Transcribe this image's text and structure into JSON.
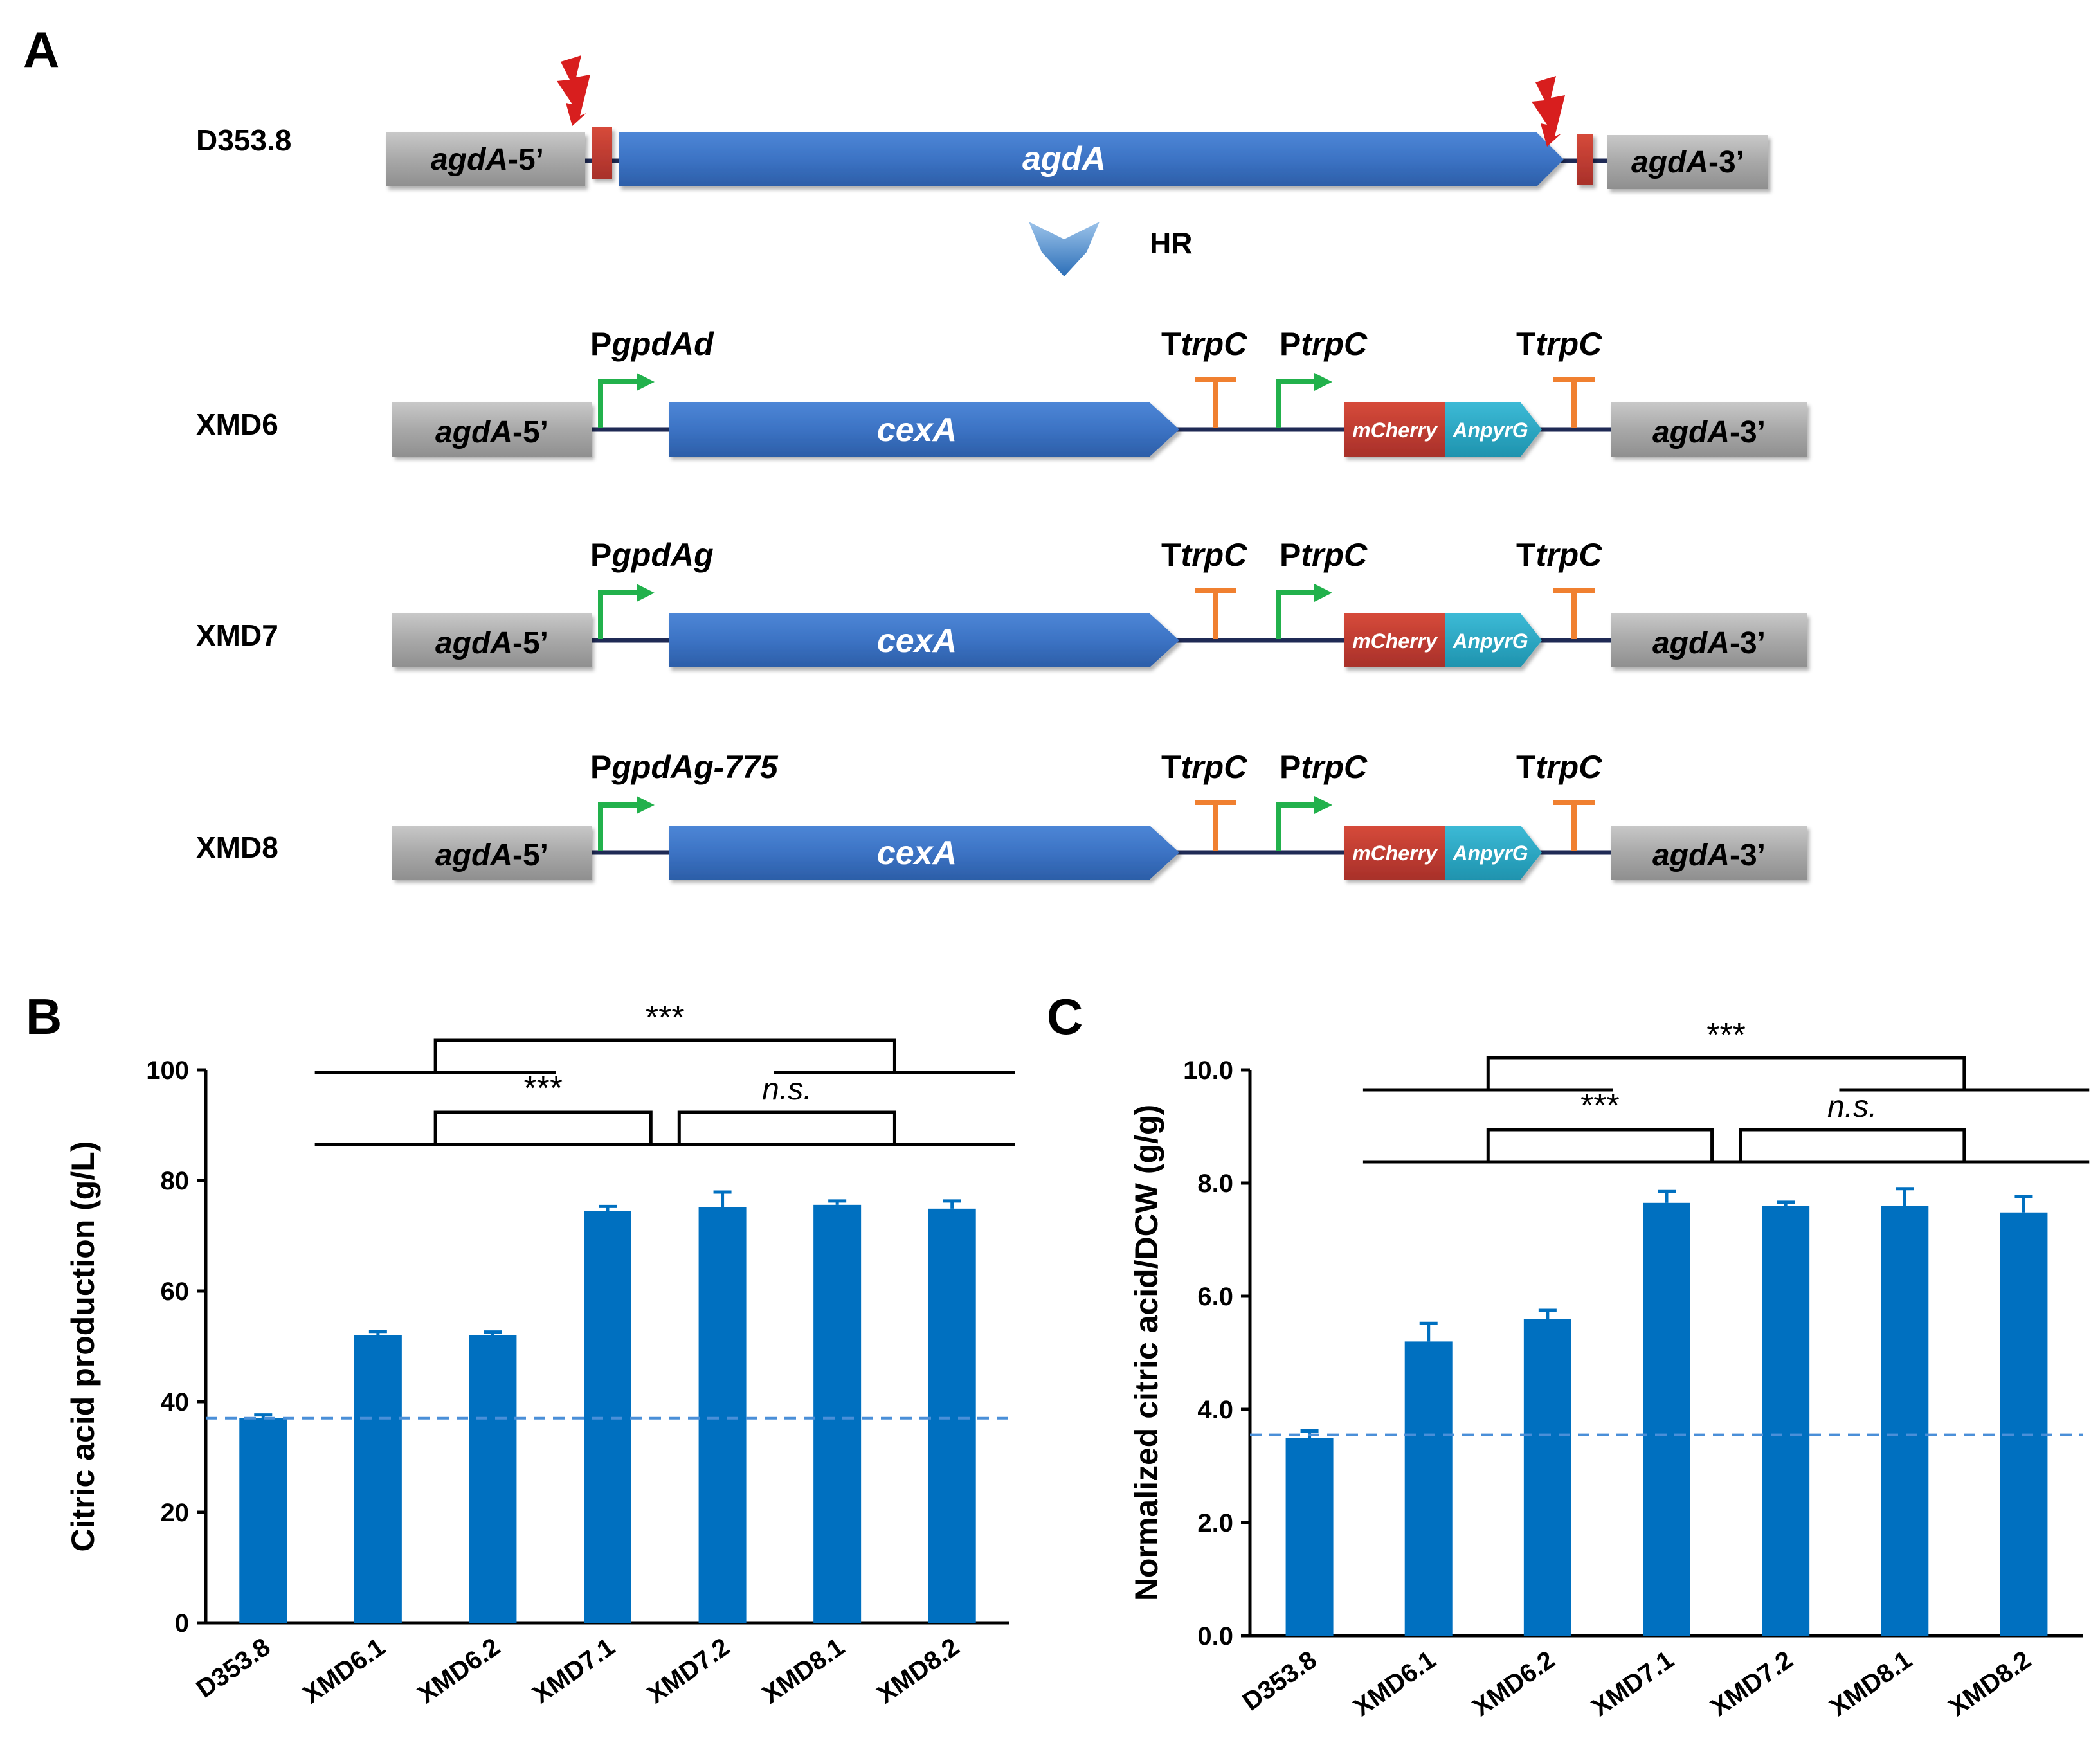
{
  "panels": {
    "A": {
      "letter": "A",
      "hr_label": "HR",
      "top_construct": {
        "strain": "D353.8",
        "left_flank": {
          "italic": "agdA",
          "plain": "-5’"
        },
        "gene": "agdA",
        "right_flank": {
          "italic": "agdA",
          "plain": "-3’"
        }
      },
      "constructs": [
        {
          "strain": "XMD6",
          "promoter": {
            "plain": "P",
            "italic": "gpdAd"
          }
        },
        {
          "strain": "XMD7",
          "promoter": {
            "plain": "P",
            "italic": "gpdAg"
          }
        },
        {
          "strain": "XMD8",
          "promoter": {
            "plain": "P",
            "italic": "gpdAg-775"
          }
        }
      ],
      "shared": {
        "left_flank": {
          "italic": "agdA",
          "plain": "-5’"
        },
        "right_flank": {
          "italic": "agdA",
          "plain": "-3’"
        },
        "gene": "cexA",
        "terminator1": {
          "plain": "T",
          "italic": "trpC"
        },
        "promoter2": {
          "plain": "P",
          "italic": "trpC"
        },
        "terminator2": {
          "plain": "T",
          "italic": "trpC"
        },
        "marker1": "mCherry",
        "marker2": "AnpyrG"
      },
      "colors": {
        "flank": "#a9a9a9",
        "gene": "#3c73c4",
        "cut_site": "#c0392b",
        "promoter_arrow": "#22b14c",
        "terminator": "#f08030",
        "mcherry": "#c0392b",
        "anpyrg": "#29a8c4",
        "backbone": "#1f2a55",
        "lightning": "#d81e1e"
      }
    }
  },
  "chart_data": [
    {
      "panel": "B",
      "type": "bar",
      "categories": [
        "D353.8",
        "XMD6.1",
        "XMD6.2",
        "XMD7.1",
        "XMD7.2",
        "XMD8.1",
        "XMD8.2"
      ],
      "values": [
        37,
        52,
        52,
        74.5,
        75.2,
        75.6,
        74.9
      ],
      "errors": [
        0.6,
        0.7,
        0.6,
        0.8,
        2.7,
        0.7,
        1.4
      ],
      "ylabel": "Citric acid production (g/L)",
      "ylim": [
        0,
        100
      ],
      "yticks": [
        "0",
        "20",
        "40",
        "60",
        "80",
        "100"
      ],
      "reference_line": 37,
      "bar_color": "#0070c0",
      "significance": [
        {
          "label": "***",
          "from": "XMD6",
          "to": "XMD8",
          "style": "normal"
        },
        {
          "label": "***",
          "from": "XMD6",
          "to": "XMD7",
          "style": "normal"
        },
        {
          "label": "n.s.",
          "from": "XMD7",
          "to": "XMD8",
          "style": "italic"
        }
      ]
    },
    {
      "panel": "C",
      "type": "bar",
      "categories": [
        "D353.8",
        "XMD6.1",
        "XMD6.2",
        "XMD7.1",
        "XMD7.2",
        "XMD8.1",
        "XMD8.2"
      ],
      "values": [
        3.5,
        5.2,
        5.6,
        7.65,
        7.6,
        7.6,
        7.48
      ],
      "errors": [
        0.12,
        0.32,
        0.15,
        0.2,
        0.06,
        0.3,
        0.28
      ],
      "ylabel": "Normalized citric acid/DCW (g/g)",
      "ylim": [
        0,
        10
      ],
      "yticks": [
        "0.0",
        "2.0",
        "4.0",
        "6.0",
        "8.0",
        "10.0"
      ],
      "reference_line": 3.55,
      "bar_color": "#0070c0",
      "significance": [
        {
          "label": "***",
          "from": "XMD6",
          "to": "XMD8",
          "style": "normal"
        },
        {
          "label": "***",
          "from": "XMD6",
          "to": "XMD7",
          "style": "normal"
        },
        {
          "label": "n.s.",
          "from": "XMD7",
          "to": "XMD8",
          "style": "italic"
        }
      ]
    }
  ]
}
